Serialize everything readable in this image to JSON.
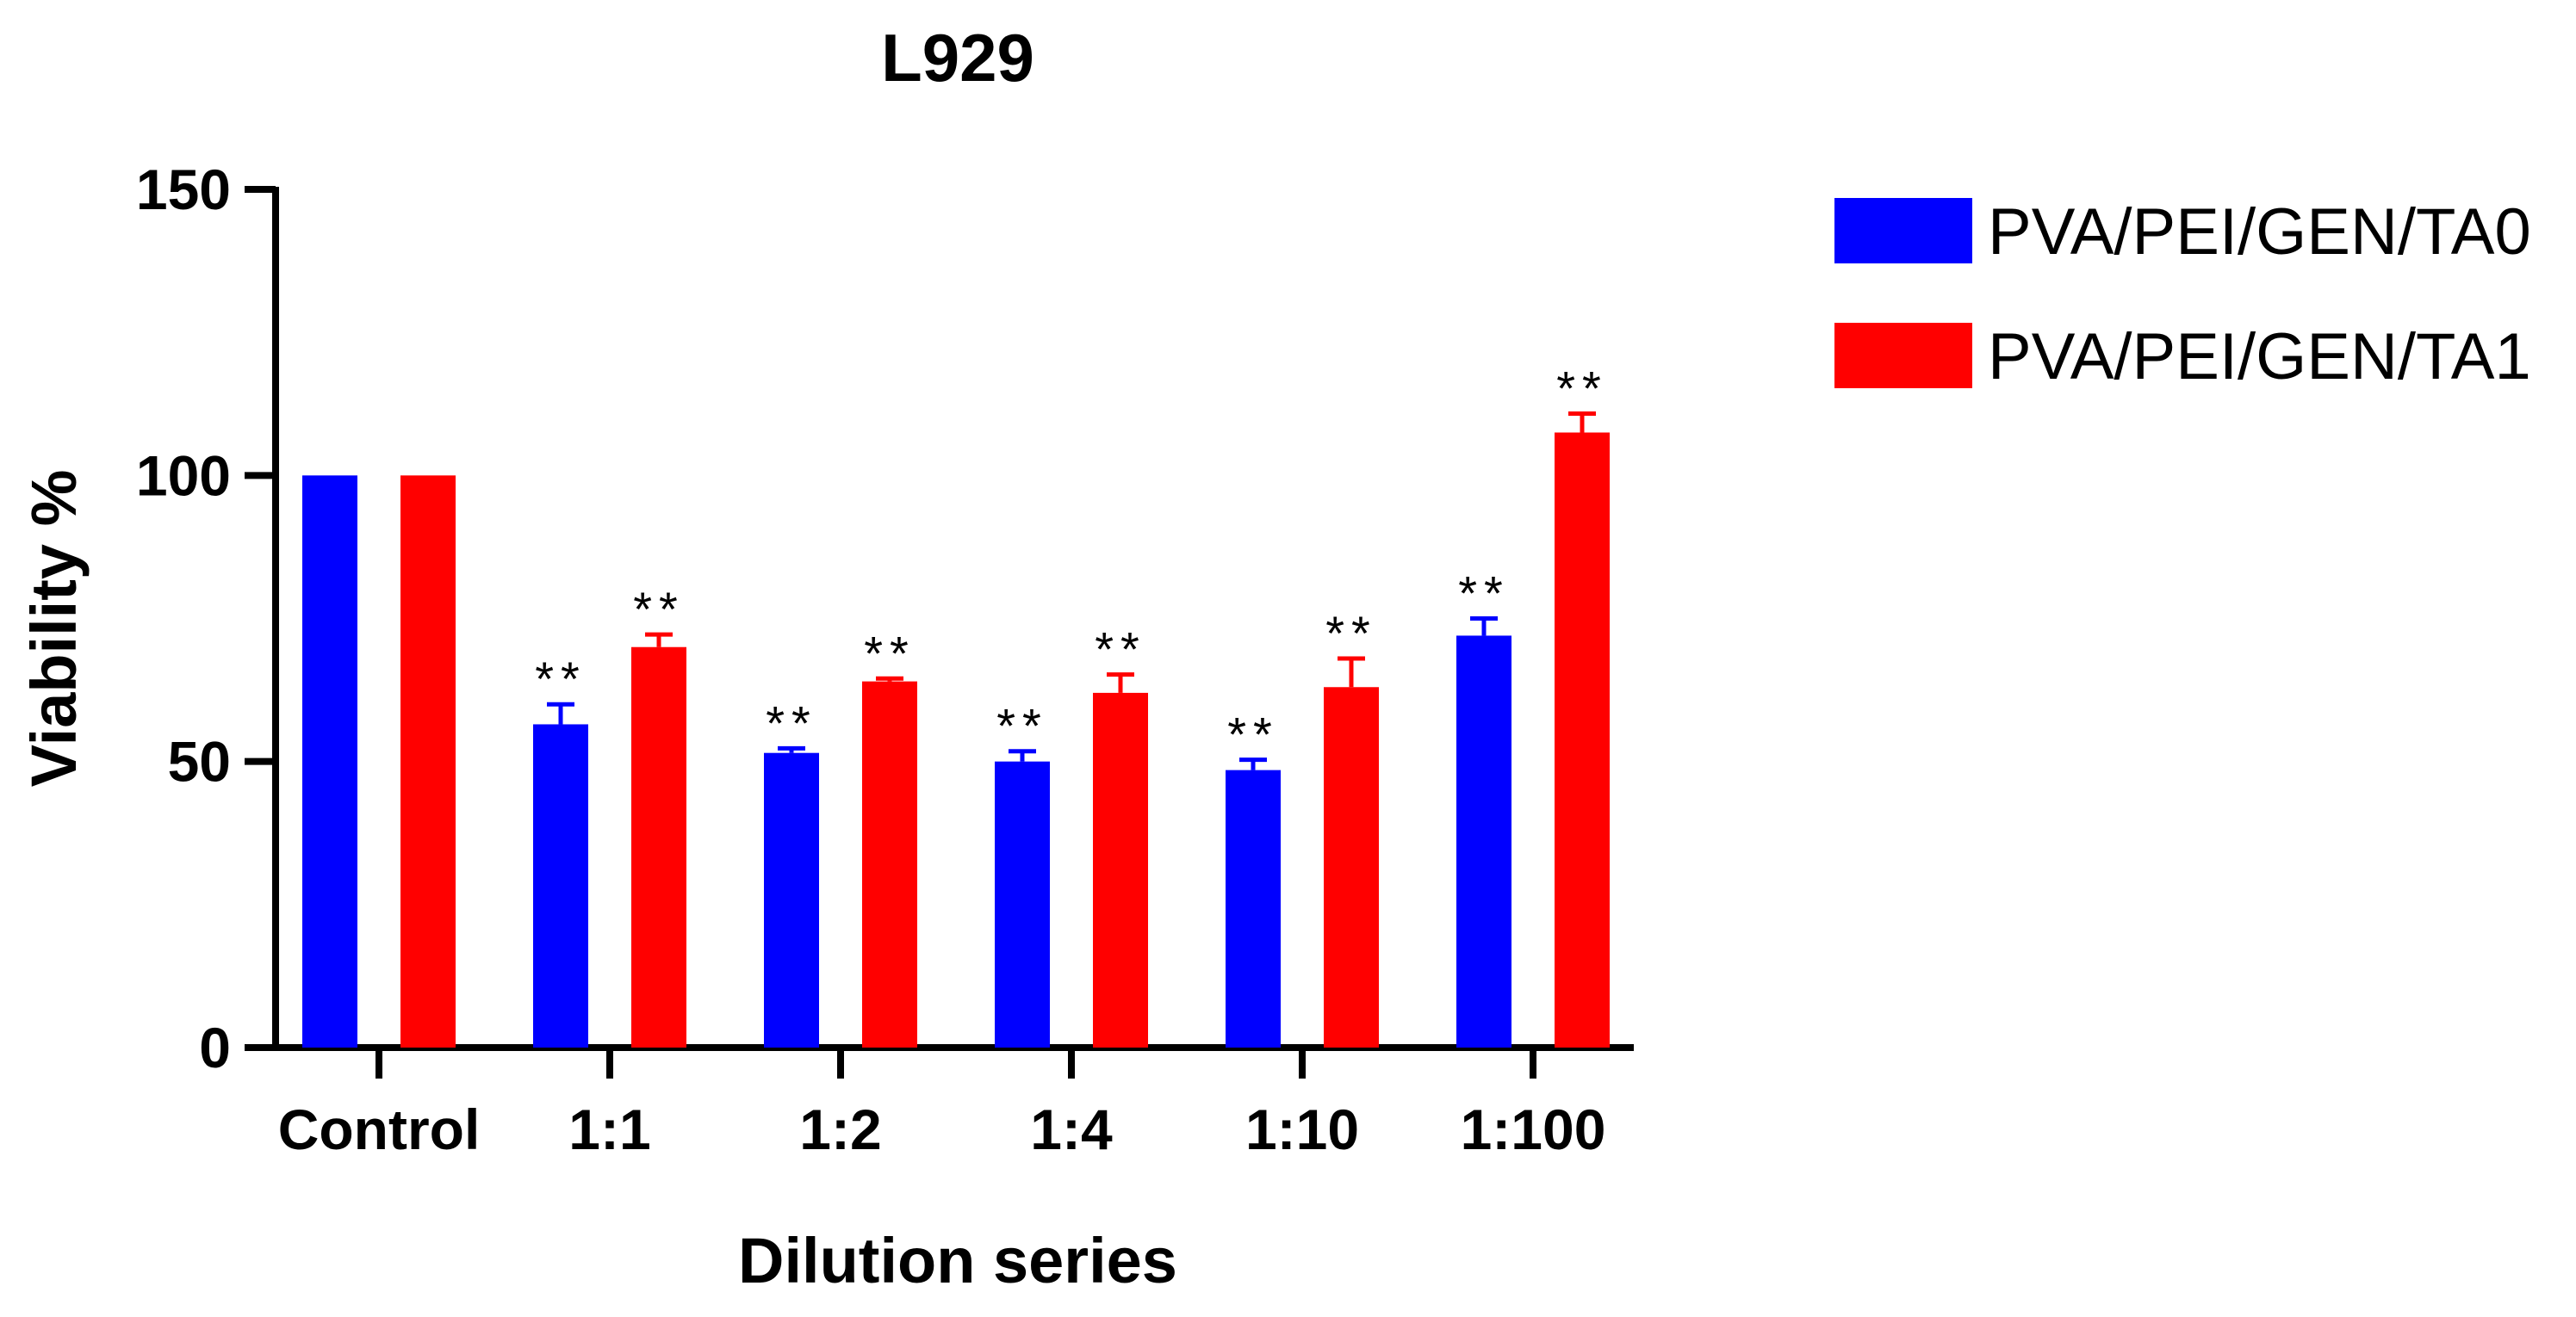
{
  "chart_data": {
    "type": "bar",
    "title": "L929",
    "xlabel": "Dilution series",
    "ylabel": "Viability %",
    "ylim": [
      0,
      150
    ],
    "yticks": [
      0,
      50,
      100,
      150
    ],
    "categories": [
      "Control",
      "1:1",
      "1:2",
      "1:4",
      "1:10",
      "1:100"
    ],
    "series": [
      {
        "name": "PVA/PEI/GEN/TA0",
        "color": "#0000ff",
        "values": [
          100,
          56.5,
          51.5,
          50,
          48.5,
          72
        ],
        "errors": [
          0,
          3.5,
          0.8,
          1.8,
          1.8,
          3
        ],
        "annotations": [
          "",
          "**",
          "**",
          "**",
          "**",
          "**"
        ]
      },
      {
        "name": "PVA/PEI/GEN/TA1",
        "color": "#ff0000",
        "values": [
          100,
          70,
          64,
          62,
          63,
          107.5
        ],
        "errors": [
          0,
          2.2,
          0.5,
          3.2,
          5,
          3.3
        ],
        "annotations": [
          "",
          "**",
          "**",
          "**",
          "**",
          "**"
        ]
      }
    ],
    "legend_position": "top-right",
    "grid": false
  }
}
